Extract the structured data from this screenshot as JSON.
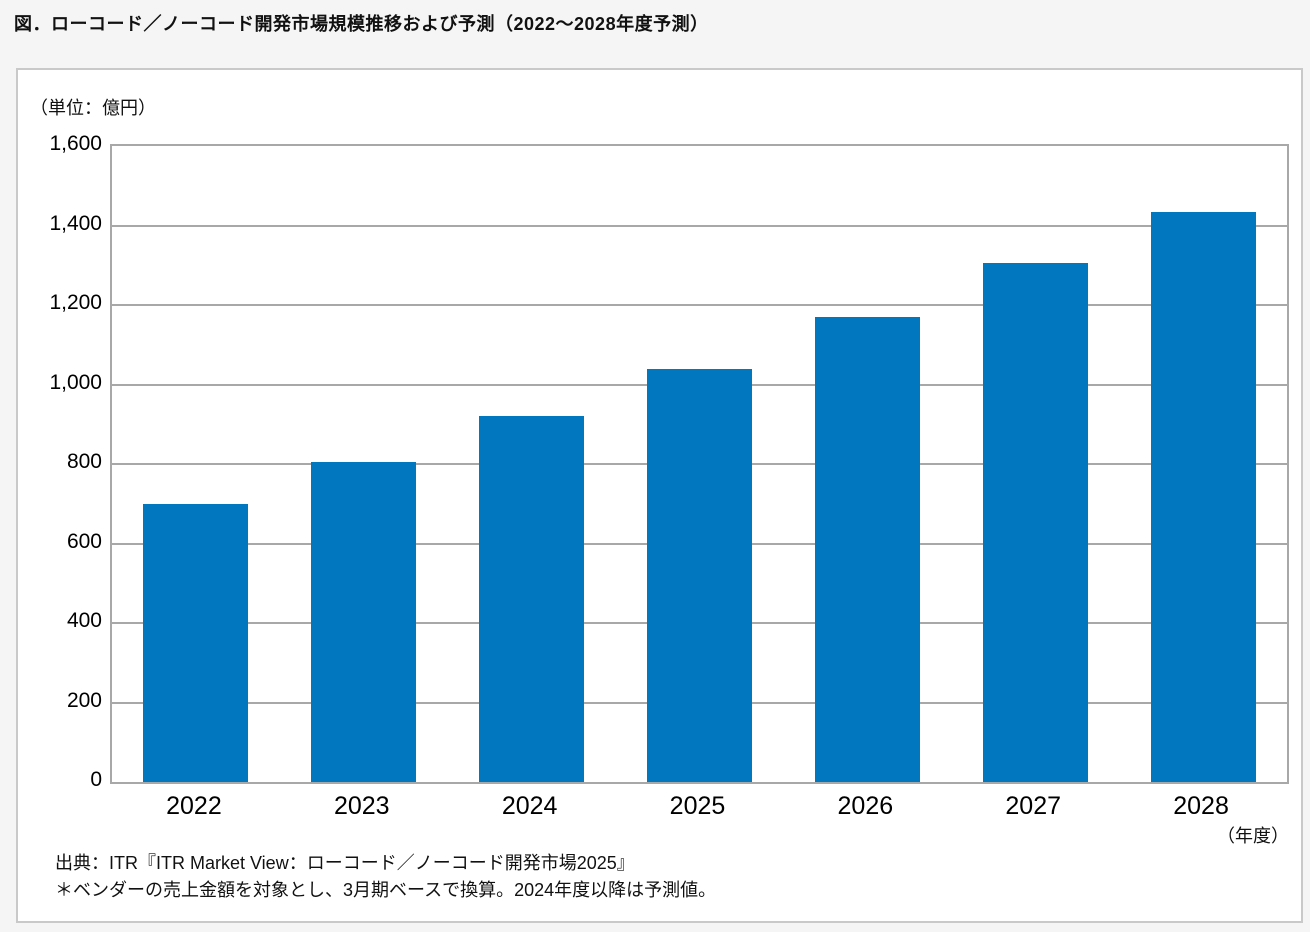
{
  "figure_title": "図．ローコード／ノーコード開発市場規模推移および予測（2022～2028年度予測）",
  "chart_data": {
    "type": "bar",
    "title": "ローコード／ノーコード開発市場規模推移および予測（2022～2028年度予測）",
    "unit_label": "（単位：億円）",
    "x_axis_unit_label": "（年度）",
    "categories": [
      "2022",
      "2023",
      "2024",
      "2025",
      "2026",
      "2027",
      "2028"
    ],
    "values": [
      700,
      805,
      920,
      1040,
      1170,
      1305,
      1435
    ],
    "ylim": [
      0,
      1600
    ],
    "y_tick_step": 200,
    "y_tick_labels": [
      "1,600",
      "1,400",
      "1,200",
      "1,000",
      "800",
      "600",
      "400",
      "200",
      "0"
    ],
    "grid": true,
    "legend_position": "none",
    "bar_color": "#0077be",
    "axis_color": "#a8a8a8"
  },
  "source_note": {
    "line1": "出典：ITR『ITR Market View：ローコード／ノーコード開発市場2025』",
    "line2": "＊ベンダーの売上金額を対象とし、3月期ベースで換算。2024年度以降は予測値。"
  }
}
